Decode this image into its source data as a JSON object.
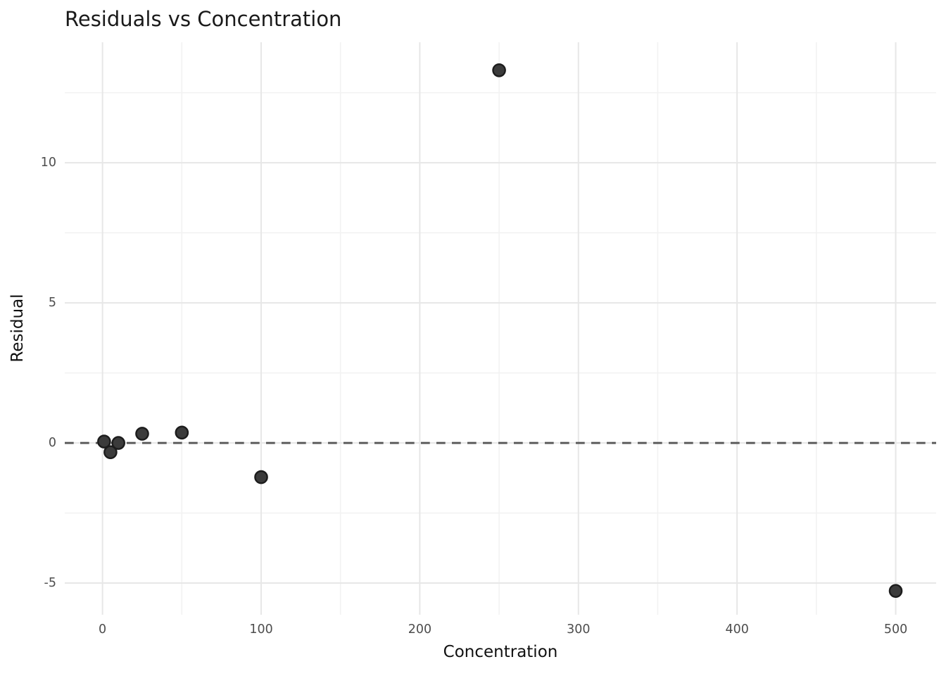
{
  "chart_data": {
    "type": "scatter",
    "title": "Residuals vs Concentration",
    "xlabel": "Concentration",
    "ylabel": "Residual",
    "points": [
      {
        "x": 1,
        "y": 0.05
      },
      {
        "x": 5,
        "y": -0.33
      },
      {
        "x": 10,
        "y": 0.0
      },
      {
        "x": 25,
        "y": 0.33
      },
      {
        "x": 50,
        "y": 0.37
      },
      {
        "x": 100,
        "y": -1.22
      },
      {
        "x": 250,
        "y": 13.3
      },
      {
        "x": 500,
        "y": -5.28
      }
    ],
    "x_ticks": [
      0,
      100,
      200,
      300,
      400,
      500
    ],
    "y_ticks": [
      -5,
      0,
      5,
      10
    ],
    "x_minor_ticks": [
      50,
      150,
      250,
      350,
      450
    ],
    "y_minor_ticks": [
      -2.5,
      2.5,
      7.5,
      12.5
    ],
    "xlim": [
      -23.8,
      525.5
    ],
    "ylim": [
      -6.13,
      14.3
    ],
    "reference_line": {
      "y": 0,
      "style": "dashed"
    },
    "grid": "on",
    "legend": "none",
    "colors": {
      "background": "#ffffff",
      "point_fill": "#3b3b3b",
      "point_stroke": "#1c1c1c",
      "grid_major": "#e7e7e7",
      "grid_minor": "#f2f2f2",
      "reference_line": "#575757",
      "tick_label": "#4d4d4d",
      "title": "#1a1a1a"
    }
  }
}
